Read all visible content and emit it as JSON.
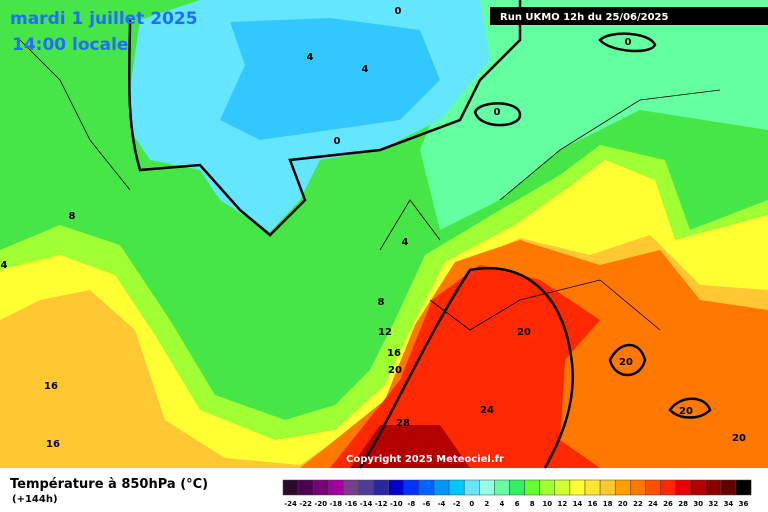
{
  "header": {
    "date": "mardi 1 juillet 2025",
    "time": "14:00 locale",
    "run": "Run UKMO 12h du 25/06/2025"
  },
  "map": {
    "copyright": "Copyright 2025 Meteociel.fr",
    "contour_labels": [
      0,
      4,
      4,
      0,
      0,
      0,
      8,
      4,
      4,
      8,
      12,
      16,
      20,
      20,
      20,
      16,
      16,
      24,
      28,
      20,
      20
    ]
  },
  "legend": {
    "title": "Température à 850hPa (°C)",
    "lead": "(+144h)",
    "ticks": [
      -24,
      -22,
      -20,
      -18,
      -16,
      -14,
      -12,
      -10,
      -8,
      -6,
      -4,
      -2,
      0,
      2,
      4,
      6,
      8,
      10,
      12,
      14,
      16,
      18,
      20,
      22,
      24,
      26,
      28,
      30,
      32,
      34,
      36
    ],
    "colors": [
      "#2d0a2d",
      "#500050",
      "#780078",
      "#a000a0",
      "#7a3c8c",
      "#503c96",
      "#2828a0",
      "#0000c8",
      "#0032ff",
      "#0064ff",
      "#0096ff",
      "#00c8ff",
      "#64e6ff",
      "#96ffe6",
      "#64ffa0",
      "#32f064",
      "#64ff32",
      "#a0ff32",
      "#d2ff32",
      "#ffff32",
      "#ffe632",
      "#ffc832",
      "#ffa000",
      "#ff7800",
      "#ff5000",
      "#ff2800",
      "#e60000",
      "#b40000",
      "#8c0000",
      "#640000",
      "#000000"
    ]
  }
}
